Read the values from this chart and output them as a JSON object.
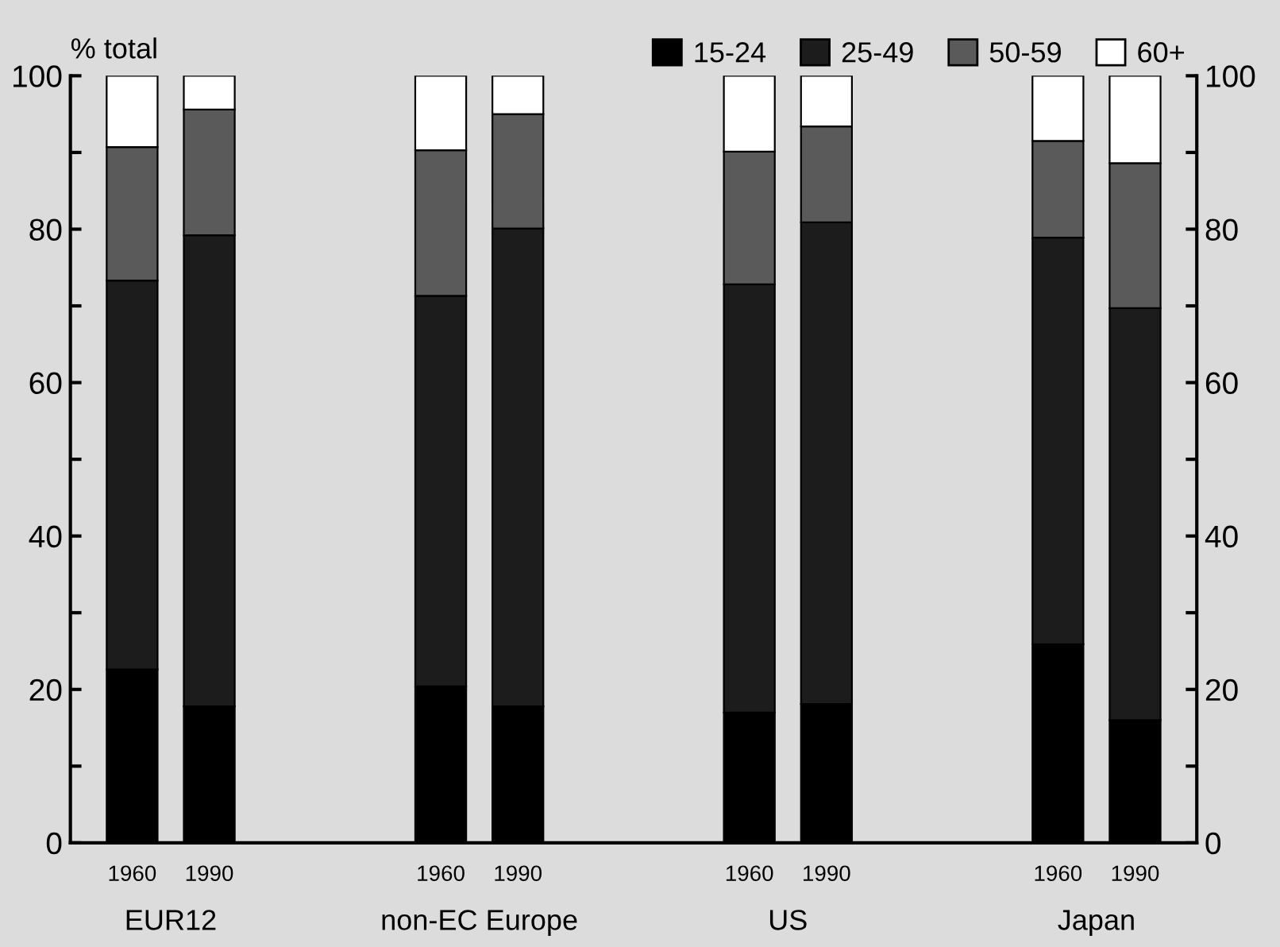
{
  "chart_data": {
    "type": "bar",
    "stacked": true,
    "ylabel": "% total",
    "categories": [
      "1960",
      "1990",
      null,
      null,
      "1960",
      "1990",
      null,
      null,
      "1960",
      "1990",
      null,
      null,
      "1960",
      "1990"
    ],
    "series": [
      {
        "name": "15-24",
        "color": "#000000",
        "values": [
          22.6,
          17.8,
          null,
          null,
          20.4,
          17.8,
          null,
          null,
          17.0,
          18.1,
          null,
          null,
          25.9,
          16.0
        ]
      },
      {
        "name": "25-49",
        "color": "#1c1c1c",
        "values": [
          50.7,
          61.4,
          null,
          null,
          50.9,
          62.3,
          null,
          null,
          55.8,
          62.8,
          null,
          null,
          53.0,
          53.7
        ]
      },
      {
        "name": "50-59",
        "color": "#5a5a5a",
        "values": [
          17.4,
          16.4,
          null,
          null,
          19.0,
          14.9,
          null,
          null,
          17.3,
          12.5,
          null,
          null,
          12.6,
          18.9
        ]
      },
      {
        "name": "60+",
        "color": "#ffffff",
        "values": [
          9.3,
          4.4,
          null,
          null,
          9.7,
          5.0,
          null,
          null,
          9.9,
          6.6,
          null,
          null,
          8.5,
          11.4
        ]
      }
    ],
    "annotations": [
      "EUR12",
      "non-EC Europe",
      "US",
      "Japan"
    ],
    "ylim": [
      0,
      100
    ],
    "yticks": [
      0,
      {
        "value": 10,
        "label": null
      },
      20,
      {
        "value": 30,
        "label": null
      },
      40,
      {
        "value": 50,
        "label": null
      },
      60,
      {
        "value": 70,
        "label": null
      },
      80,
      {
        "value": 90,
        "label": null
      },
      100
    ],
    "y2lim": [
      0,
      100
    ],
    "y2ticks": [
      0,
      {
        "value": 10,
        "label": null
      },
      20,
      {
        "value": 30,
        "label": null
      },
      40,
      {
        "value": 50,
        "label": null
      },
      60,
      {
        "value": 70,
        "label": null
      },
      80,
      {
        "value": 90,
        "label": null
      },
      100
    ],
    "legend": "top right",
    "grid": false
  }
}
